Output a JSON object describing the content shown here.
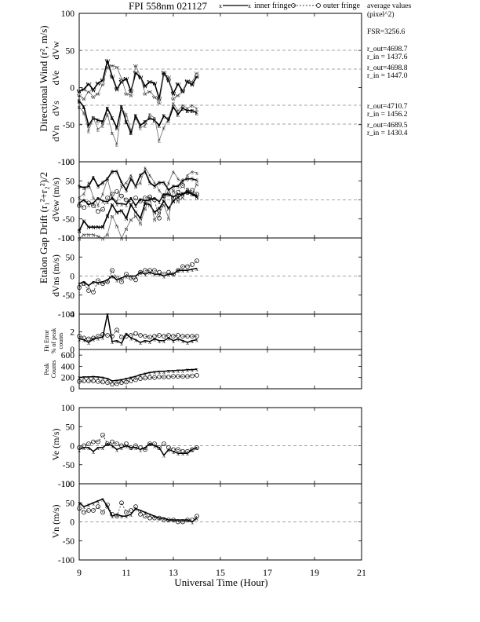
{
  "header": {
    "title": "FPI 558nm 021127",
    "legend_inner": "inner fringe",
    "legend_outer": "outer fringe",
    "avg_title": "average values",
    "avg_unit": "(pixel^2)"
  },
  "stats": {
    "fsr": "FSR=3256.6",
    "w_out": "r_out=4698.7",
    "w_in": "r_in = 1437.6",
    "e_out": "r_out=4698.8",
    "e_in": "r_in = 1447.0",
    "s_out": "r_out=4710.7",
    "s_in": "r_in = 1456.2",
    "n_out": "r_out=4689.5",
    "n_in": "r_in = 1430.4"
  },
  "labels": {
    "dir_wind": "Directional Wind (r², m/s)",
    "etalon": "Etalon Gap Drift (r₁²+r₂²)/2",
    "fit_error": "Fit Error",
    "fit_error2": "% of peak",
    "fit_error3": "counts",
    "peak": "Peak",
    "peak2": "Counts",
    "dVw": "dVw",
    "dVe": "dVe",
    "dVs": "dVs",
    "dVn": "dVn",
    "dVew": "dVew (m/s)",
    "dVns": "dVns (m/s)",
    "ve": "Ve (m/s)",
    "vn": "Vn (m/s)",
    "xaxis": "Universal Time (Hour)"
  },
  "chart_data": [
    {
      "id": "directional",
      "type": "line",
      "ylim": [
        -100,
        100
      ],
      "yticks": [
        100,
        50,
        0,
        -50,
        -100
      ],
      "xlim": [
        9,
        21
      ],
      "series": [
        {
          "name": "dVw",
          "marker": "W",
          "offset": 0,
          "x": [
            9.0,
            9.2,
            9.4,
            9.6,
            9.8,
            10.0,
            10.2,
            10.4,
            10.6,
            10.8,
            11.0,
            11.2,
            11.4,
            11.6,
            11.8,
            12.0,
            12.2,
            12.4,
            12.6,
            12.8,
            13.0,
            13.2,
            13.4,
            13.6,
            13.8,
            14.0
          ],
          "inner": [
            -5,
            -2,
            5,
            -3,
            6,
            10,
            36,
            15,
            -2,
            8,
            12,
            -5,
            20,
            14,
            2,
            8,
            6,
            -15,
            20,
            10,
            -8,
            5,
            -5,
            8,
            4,
            15
          ],
          "outer": [
            -10,
            -15,
            -5,
            -12,
            -8,
            5,
            28,
            30,
            28,
            12,
            -8,
            -10,
            30,
            15,
            -8,
            -5,
            -12,
            -20,
            18,
            15,
            -15,
            -10,
            -5,
            10,
            8,
            20
          ]
        },
        {
          "name": "dVe",
          "marker": "E",
          "offset": -46,
          "x": [
            9.0,
            9.2,
            9.4,
            9.6,
            9.8,
            10.0,
            10.2,
            10.4,
            10.6,
            10.8,
            11.0,
            11.2,
            11.4,
            11.6,
            11.8,
            12.0,
            12.2,
            12.4,
            12.6,
            12.8,
            13.0,
            13.2,
            13.4,
            13.6,
            13.8,
            14.0
          ],
          "inner": [
            28,
            20,
            -5,
            5,
            2,
            0,
            18,
            5,
            -8,
            20,
            0,
            -15,
            8,
            -5,
            0,
            5,
            2,
            -5,
            8,
            2,
            20,
            10,
            18,
            15,
            15,
            12
          ],
          "outer": [
            20,
            12,
            -12,
            5,
            -10,
            -5,
            10,
            -15,
            -30,
            18,
            10,
            -12,
            5,
            -8,
            -5,
            10,
            5,
            -25,
            -8,
            5,
            25,
            15,
            22,
            18,
            22,
            18
          ]
        },
        {
          "name": "dVs",
          "marker": "S",
          "offset": -143,
          "x": [
            9.0,
            9.2,
            9.4,
            9.6,
            9.8,
            10.0,
            10.2,
            10.4,
            10.6,
            10.8,
            11.0,
            11.2,
            11.4,
            11.6,
            11.8,
            12.0,
            12.2,
            12.4,
            12.6,
            12.8,
            13.0,
            13.2,
            13.4,
            13.6,
            13.8,
            14.0
          ],
          "inner": [
            10,
            8,
            10,
            22,
            10,
            15,
            20,
            30,
            30,
            15,
            5,
            20,
            10,
            25,
            30,
            15,
            10,
            15,
            15,
            5,
            10,
            10,
            18,
            20,
            20,
            18
          ],
          "outer": [
            -5,
            0,
            15,
            -5,
            -15,
            0,
            20,
            -5,
            -10,
            10,
            15,
            25,
            10,
            15,
            35,
            25,
            15,
            5,
            -5,
            15,
            30,
            20,
            15,
            25,
            30,
            28
          ]
        },
        {
          "name": "dVn",
          "marker": "N",
          "offset": -198,
          "x": [
            9.0,
            9.2,
            9.4,
            9.6,
            9.8,
            10.0,
            10.2,
            10.4,
            10.6,
            10.8,
            11.0,
            11.2,
            11.4,
            11.6,
            11.8,
            12.0,
            12.2,
            12.4,
            12.6,
            12.8,
            13.0,
            13.2,
            13.4,
            13.6,
            13.8,
            14.0
          ],
          "inner": [
            5,
            18,
            10,
            10,
            10,
            10,
            25,
            40,
            30,
            32,
            22,
            40,
            30,
            22,
            42,
            40,
            30,
            35,
            45,
            35,
            45,
            50,
            55,
            58,
            55,
            50
          ],
          "outer": [
            -5,
            0,
            0,
            0,
            -2,
            -5,
            0,
            25,
            12,
            -5,
            8,
            20,
            25,
            15,
            35,
            50,
            20,
            30,
            40,
            22,
            60,
            45,
            50,
            62,
            55,
            68
          ]
        }
      ]
    },
    {
      "id": "etalon_ew",
      "type": "line",
      "ylim": [
        -100,
        100
      ],
      "yticks": [
        100,
        50,
        0,
        -50,
        -100
      ],
      "x": [
        9.0,
        9.2,
        9.4,
        9.6,
        9.8,
        10.0,
        10.2,
        10.4,
        10.6,
        10.8,
        11.0,
        11.2,
        11.4,
        11.6,
        11.8,
        12.0,
        12.2,
        12.4,
        12.6,
        12.8,
        13.0,
        13.2,
        13.4,
        13.6,
        13.8,
        14.0
      ],
      "series": [
        {
          "name": "inner fringe",
          "values": [
            -8,
            0,
            -12,
            -8,
            5,
            -3,
            -5,
            5,
            -10,
            -10,
            -12,
            5,
            -15,
            2,
            -3,
            0,
            5,
            -5,
            15,
            15,
            8,
            15,
            15,
            20,
            15,
            12
          ]
        },
        {
          "name": "outer fringe",
          "values": [
            -15,
            -20,
            -8,
            -15,
            -30,
            -25,
            5,
            15,
            22,
            10,
            0,
            -5,
            5,
            -3,
            5,
            8,
            0,
            -48,
            10,
            15,
            5,
            20,
            38,
            20,
            25,
            15
          ]
        }
      ]
    },
    {
      "id": "etalon_ns",
      "type": "line",
      "ylim": [
        -100,
        100
      ],
      "yticks": [
        100,
        50,
        0,
        -50,
        -100
      ],
      "x": [
        9.0,
        9.2,
        9.4,
        9.6,
        9.8,
        10.0,
        10.2,
        10.4,
        10.6,
        10.8,
        11.0,
        11.2,
        11.4,
        11.6,
        11.8,
        12.0,
        12.2,
        12.4,
        12.6,
        12.8,
        13.0,
        13.2,
        13.4,
        13.6,
        13.8,
        14.0
      ],
      "series": [
        {
          "name": "inner fringe",
          "values": [
            -20,
            -15,
            -25,
            -15,
            -18,
            -15,
            -10,
            0,
            -10,
            -5,
            0,
            0,
            0,
            10,
            5,
            10,
            5,
            5,
            0,
            5,
            5,
            15,
            15,
            15,
            18,
            20
          ]
        },
        {
          "name": "outer fringe",
          "values": [
            -30,
            -20,
            -38,
            -42,
            -12,
            -20,
            -15,
            15,
            -5,
            -15,
            5,
            -5,
            -10,
            10,
            15,
            15,
            15,
            10,
            5,
            10,
            5,
            15,
            25,
            25,
            30,
            40
          ]
        }
      ]
    },
    {
      "id": "fit_error",
      "type": "line",
      "ylim": [
        0,
        4
      ],
      "yticks": [
        4,
        2,
        0
      ],
      "x": [
        9.0,
        9.2,
        9.4,
        9.6,
        9.8,
        10.0,
        10.2,
        10.4,
        10.6,
        10.8,
        11.0,
        11.2,
        11.4,
        11.6,
        11.8,
        12.0,
        12.2,
        12.4,
        12.6,
        12.8,
        13.0,
        13.2,
        13.4,
        13.6,
        13.8,
        14.0
      ],
      "series": [
        {
          "name": "inner fringe",
          "values": [
            1.2,
            1.1,
            0.8,
            1.2,
            1.3,
            1.4,
            4.0,
            0.9,
            1.0,
            0.7,
            1.8,
            1.3,
            1.1,
            0.8,
            1.0,
            0.9,
            1.2,
            1.0,
            1.0,
            1.3,
            1.0,
            1.2,
            1.0,
            0.8,
            1.0,
            1.1
          ]
        },
        {
          "name": "outer fringe",
          "values": [
            1.5,
            1.3,
            1.2,
            1.3,
            1.5,
            1.7,
            1.6,
            1.5,
            2.2,
            1.4,
            1.5,
            1.6,
            1.8,
            1.6,
            1.5,
            1.4,
            1.5,
            1.6,
            1.5,
            1.6,
            1.5,
            1.6,
            1.5,
            1.5,
            1.5,
            1.5
          ]
        }
      ]
    },
    {
      "id": "peak_counts",
      "type": "line",
      "ylim": [
        0,
        700
      ],
      "yticks": [
        600,
        400,
        200,
        0
      ],
      "x": [
        9.0,
        9.2,
        9.4,
        9.6,
        9.8,
        10.0,
        10.2,
        10.4,
        10.6,
        10.8,
        11.0,
        11.2,
        11.4,
        11.6,
        11.8,
        12.0,
        12.2,
        12.4,
        12.6,
        12.8,
        13.0,
        13.2,
        13.4,
        13.6,
        13.8,
        14.0
      ],
      "series": [
        {
          "name": "inner fringe",
          "values": [
            200,
            210,
            210,
            215,
            210,
            200,
            180,
            140,
            150,
            160,
            180,
            200,
            220,
            250,
            270,
            290,
            300,
            310,
            310,
            320,
            320,
            330,
            330,
            340,
            340,
            350
          ]
        },
        {
          "name": "outer fringe",
          "values": [
            130,
            140,
            140,
            140,
            130,
            120,
            110,
            80,
            90,
            110,
            120,
            140,
            160,
            180,
            190,
            200,
            200,
            210,
            210,
            210,
            220,
            220,
            220,
            220,
            230,
            240
          ]
        }
      ]
    },
    {
      "id": "ve",
      "type": "line",
      "ylim": [
        -100,
        100
      ],
      "yticks": [
        100,
        50,
        0,
        -50,
        -100
      ],
      "x": [
        9.0,
        9.2,
        9.4,
        9.6,
        9.8,
        10.0,
        10.2,
        10.4,
        10.6,
        10.8,
        11.0,
        11.2,
        11.4,
        11.6,
        11.8,
        12.0,
        12.2,
        12.4,
        12.6,
        12.8,
        13.0,
        13.2,
        13.4,
        13.6,
        13.8,
        14.0
      ],
      "series": [
        {
          "name": "inner fringe",
          "values": [
            -10,
            -5,
            -5,
            -15,
            -5,
            -5,
            5,
            0,
            -10,
            -5,
            0,
            -5,
            -5,
            -10,
            -5,
            5,
            0,
            -5,
            -25,
            -10,
            -15,
            -20,
            -20,
            -20,
            -10,
            -5
          ]
        },
        {
          "name": "outer fringe",
          "values": [
            -5,
            0,
            5,
            10,
            10,
            28,
            5,
            10,
            5,
            0,
            5,
            -5,
            0,
            -5,
            -10,
            5,
            5,
            -5,
            5,
            -5,
            -10,
            -10,
            -15,
            -15,
            -10,
            -5
          ]
        }
      ]
    },
    {
      "id": "vn",
      "type": "line",
      "ylim": [
        -100,
        100
      ],
      "yticks": [
        100,
        50,
        0,
        -50,
        -100
      ],
      "x": [
        9.0,
        9.2,
        9.4,
        9.6,
        9.8,
        10.0,
        10.2,
        10.4,
        10.6,
        10.8,
        11.0,
        11.2,
        11.4,
        11.6,
        11.8,
        12.0,
        12.2,
        12.4,
        12.6,
        12.8,
        13.0,
        13.2,
        13.4,
        13.6,
        13.8,
        14.0
      ],
      "series": [
        {
          "name": "inner fringe",
          "values": [
            50,
            40,
            45,
            50,
            55,
            60,
            40,
            15,
            20,
            15,
            15,
            20,
            35,
            30,
            25,
            20,
            15,
            10,
            10,
            5,
            5,
            5,
            5,
            5,
            0,
            10
          ]
        },
        {
          "name": "outer fringe",
          "values": [
            35,
            25,
            30,
            30,
            40,
            25,
            45,
            20,
            15,
            50,
            25,
            30,
            40,
            20,
            15,
            10,
            10,
            10,
            5,
            5,
            5,
            0,
            0,
            5,
            5,
            15
          ]
        }
      ]
    }
  ],
  "xaxis": {
    "ticks": [
      9,
      11,
      13,
      15,
      17,
      19,
      21
    ],
    "tick_labels": [
      "9",
      "11",
      "13",
      "15",
      "17",
      "19",
      "21"
    ]
  }
}
